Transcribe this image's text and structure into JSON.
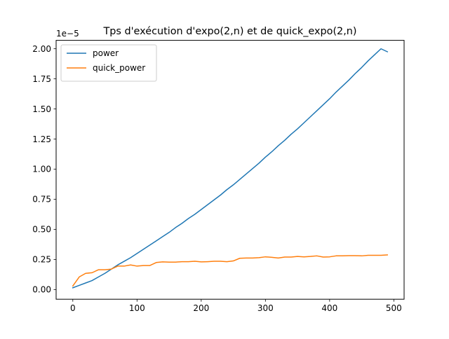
{
  "chart_data": {
    "type": "line",
    "title": "Tps d'exécution d'expo(2,n) et de quick_expo(2,n)",
    "xlabel": "",
    "ylabel": "",
    "y_offset_label": "1e−5",
    "xlim": [
      -26,
      516
    ],
    "ylim": [
      -0.08,
      2.07
    ],
    "xticks": [
      0,
      100,
      200,
      300,
      400,
      500
    ],
    "xtick_labels": [
      "0",
      "100",
      "200",
      "300",
      "400",
      "500"
    ],
    "yticks": [
      0.0,
      0.25,
      0.5,
      0.75,
      1.0,
      1.25,
      1.5,
      1.75,
      2.0
    ],
    "ytick_labels": [
      "0.00",
      "0.25",
      "0.50",
      "0.75",
      "1.00",
      "1.25",
      "1.50",
      "1.75",
      "2.00"
    ],
    "grid": false,
    "legend_position": "upper-left",
    "x": [
      0,
      10,
      20,
      30,
      40,
      50,
      60,
      70,
      80,
      90,
      100,
      110,
      120,
      130,
      140,
      150,
      160,
      170,
      180,
      190,
      200,
      210,
      220,
      230,
      240,
      250,
      260,
      270,
      280,
      290,
      300,
      310,
      320,
      330,
      340,
      350,
      360,
      370,
      380,
      390,
      400,
      410,
      420,
      430,
      440,
      450,
      460,
      470,
      480,
      490
    ],
    "series": [
      {
        "name": "power",
        "color": "#1f77b4",
        "values": [
          0.015,
          0.035,
          0.055,
          0.075,
          0.105,
          0.135,
          0.17,
          0.205,
          0.235,
          0.265,
          0.3,
          0.335,
          0.37,
          0.405,
          0.44,
          0.475,
          0.515,
          0.55,
          0.59,
          0.625,
          0.665,
          0.705,
          0.745,
          0.785,
          0.83,
          0.87,
          0.915,
          0.96,
          1.005,
          1.05,
          1.1,
          1.145,
          1.195,
          1.24,
          1.29,
          1.335,
          1.385,
          1.435,
          1.485,
          1.535,
          1.585,
          1.64,
          1.69,
          1.74,
          1.795,
          1.845,
          1.9,
          1.95,
          2.0,
          1.975
        ]
      },
      {
        "name": "quick_power",
        "color": "#ff7f0e",
        "values": [
          0.03,
          0.105,
          0.135,
          0.14,
          0.165,
          0.165,
          0.17,
          0.195,
          0.195,
          0.205,
          0.195,
          0.2,
          0.2,
          0.225,
          0.23,
          0.228,
          0.228,
          0.232,
          0.232,
          0.235,
          0.23,
          0.232,
          0.235,
          0.235,
          0.232,
          0.238,
          0.26,
          0.262,
          0.262,
          0.265,
          0.272,
          0.268,
          0.262,
          0.27,
          0.27,
          0.275,
          0.272,
          0.275,
          0.28,
          0.27,
          0.272,
          0.28,
          0.28,
          0.282,
          0.282,
          0.28,
          0.285,
          0.285,
          0.285,
          0.288
        ]
      }
    ]
  }
}
